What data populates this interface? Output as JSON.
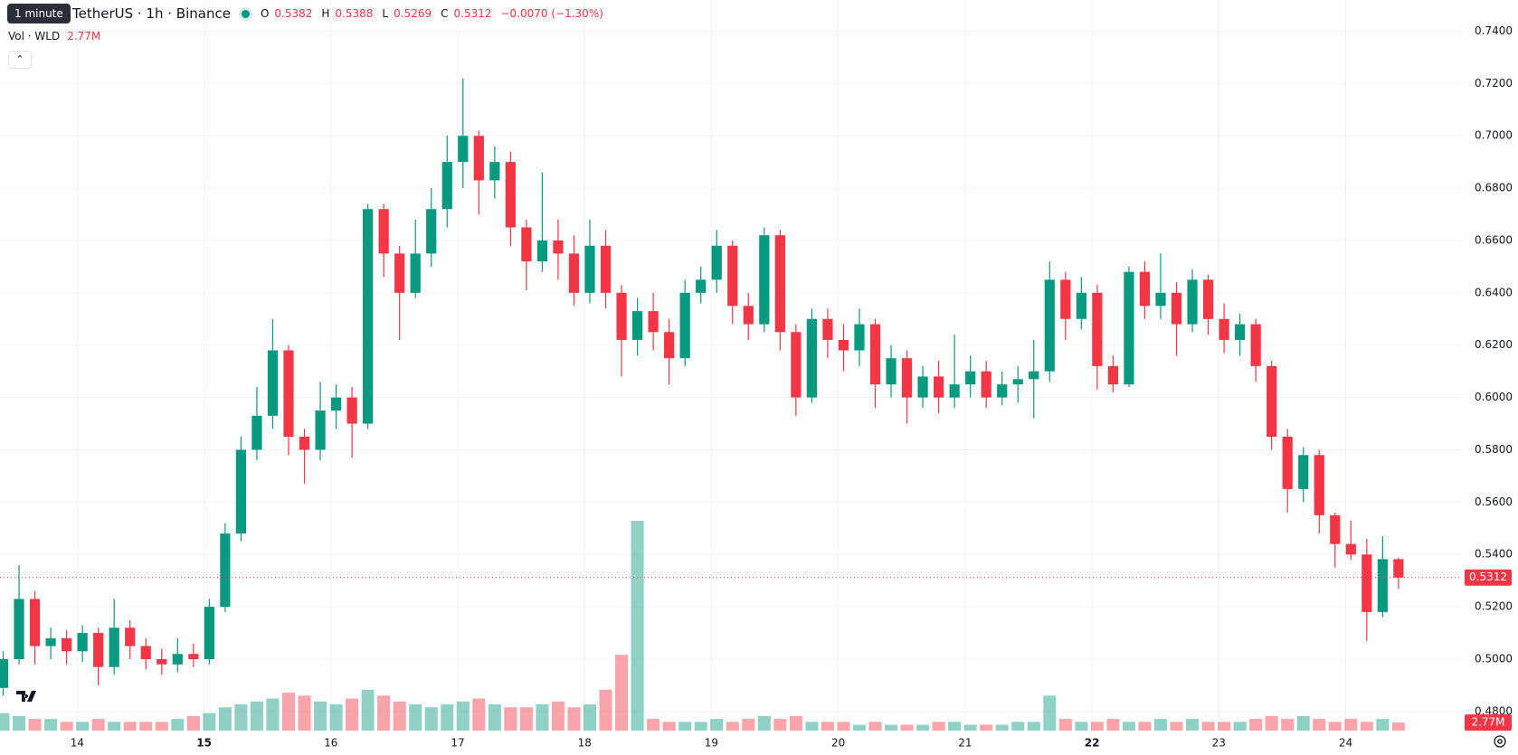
{
  "chart_data": {
    "type": "candlestick",
    "symbol": "TetherUS · 1h · Binance",
    "tooltip": "1 minute",
    "legend_labels": [
      "O",
      "H",
      "L",
      "C"
    ],
    "change": "−0.0070 (−1.30%)",
    "volume_title": "Vol · WLD",
    "volume_value_label": "2.77M",
    "colors": {
      "up": "#089981",
      "down": "#f23645"
    },
    "grid": true,
    "xlim": [
      -0.2,
      92
    ],
    "xticks": [
      {
        "value": 4.67,
        "label": "14"
      },
      {
        "value": 12.67,
        "label": "15"
      },
      {
        "value": 20.67,
        "label": "16"
      },
      {
        "value": 28.67,
        "label": "17"
      },
      {
        "value": 36.67,
        "label": "18"
      },
      {
        "value": 44.67,
        "label": "19"
      },
      {
        "value": 52.67,
        "label": "20"
      },
      {
        "value": 60.67,
        "label": "21"
      },
      {
        "value": 68.67,
        "label": "22"
      },
      {
        "value": 76.67,
        "label": "23"
      },
      {
        "value": 84.67,
        "label": "24"
      }
    ],
    "ylim": [
      0.4727,
      0.7519
    ],
    "yticks": [
      {
        "value": 0.48,
        "label": "0.4800"
      },
      {
        "value": 0.5,
        "label": "0.5000"
      },
      {
        "value": 0.52,
        "label": "0.5200"
      },
      {
        "value": 0.54,
        "label": "0.5400"
      },
      {
        "value": 0.56,
        "label": "0.5600"
      },
      {
        "value": 0.58,
        "label": "0.5800"
      },
      {
        "value": 0.6,
        "label": "0.6000"
      },
      {
        "value": 0.62,
        "label": "0.6200"
      },
      {
        "value": 0.64,
        "label": "0.6400"
      },
      {
        "value": 0.66,
        "label": "0.6600"
      },
      {
        "value": 0.68,
        "label": "0.6800"
      },
      {
        "value": 0.7,
        "label": "0.7000"
      },
      {
        "value": 0.72,
        "label": "0.7200"
      },
      {
        "value": 0.74,
        "label": "0.7400"
      }
    ],
    "open": [
      0.489,
      0.5,
      0.523,
      0.505,
      0.508,
      0.503,
      0.51,
      0.497,
      0.512,
      0.505,
      0.5,
      0.498,
      0.502,
      0.5,
      0.52,
      0.548,
      0.58,
      0.593,
      0.618,
      0.585,
      0.58,
      0.595,
      0.6,
      0.59,
      0.672,
      0.655,
      0.64,
      0.655,
      0.672,
      0.69,
      0.7,
      0.683,
      0.69,
      0.665,
      0.652,
      0.66,
      0.655,
      0.64,
      0.658,
      0.64,
      0.622,
      0.633,
      0.625,
      0.615,
      0.64,
      0.645,
      0.658,
      0.635,
      0.628,
      0.662,
      0.625,
      0.6,
      0.63,
      0.622,
      0.618,
      0.628,
      0.605,
      0.615,
      0.6,
      0.608,
      0.6,
      0.605,
      0.61,
      0.6,
      0.605,
      0.607,
      0.61,
      0.645,
      0.63,
      0.64,
      0.612,
      0.605,
      0.648,
      0.635,
      0.64,
      0.628,
      0.645,
      0.63,
      0.622,
      0.628,
      0.612,
      0.585,
      0.565,
      0.578,
      0.555,
      0.544,
      0.54,
      0.518,
      0.5382
    ],
    "high": [
      0.503,
      0.536,
      0.526,
      0.512,
      0.511,
      0.513,
      0.512,
      0.523,
      0.515,
      0.508,
      0.504,
      0.508,
      0.506,
      0.523,
      0.552,
      0.585,
      0.604,
      0.63,
      0.62,
      0.588,
      0.606,
      0.605,
      0.604,
      0.674,
      0.674,
      0.658,
      0.668,
      0.68,
      0.7,
      0.722,
      0.702,
      0.696,
      0.694,
      0.668,
      0.686,
      0.668,
      0.662,
      0.668,
      0.664,
      0.643,
      0.638,
      0.64,
      0.63,
      0.645,
      0.65,
      0.664,
      0.66,
      0.64,
      0.665,
      0.664,
      0.628,
      0.634,
      0.634,
      0.628,
      0.634,
      0.63,
      0.62,
      0.618,
      0.612,
      0.614,
      0.624,
      0.616,
      0.614,
      0.61,
      0.612,
      0.622,
      0.652,
      0.648,
      0.646,
      0.643,
      0.616,
      0.65,
      0.652,
      0.655,
      0.644,
      0.649,
      0.647,
      0.636,
      0.632,
      0.63,
      0.614,
      0.588,
      0.581,
      0.58,
      0.556,
      0.553,
      0.546,
      0.547,
      0.5388
    ],
    "low": [
      0.486,
      0.498,
      0.498,
      0.5,
      0.498,
      0.499,
      0.49,
      0.494,
      0.5,
      0.496,
      0.494,
      0.495,
      0.497,
      0.498,
      0.518,
      0.545,
      0.576,
      0.588,
      0.578,
      0.567,
      0.576,
      0.588,
      0.577,
      0.588,
      0.646,
      0.622,
      0.638,
      0.65,
      0.665,
      0.68,
      0.67,
      0.676,
      0.658,
      0.641,
      0.648,
      0.645,
      0.635,
      0.636,
      0.634,
      0.608,
      0.616,
      0.618,
      0.605,
      0.612,
      0.636,
      0.64,
      0.628,
      0.622,
      0.625,
      0.618,
      0.593,
      0.598,
      0.615,
      0.61,
      0.612,
      0.596,
      0.6,
      0.59,
      0.596,
      0.594,
      0.596,
      0.6,
      0.596,
      0.597,
      0.598,
      0.592,
      0.606,
      0.622,
      0.626,
      0.603,
      0.602,
      0.604,
      0.63,
      0.63,
      0.616,
      0.625,
      0.624,
      0.617,
      0.616,
      0.606,
      0.58,
      0.556,
      0.56,
      0.548,
      0.535,
      0.538,
      0.507,
      0.516,
      0.5269
    ],
    "close": [
      0.5,
      0.523,
      0.505,
      0.508,
      0.503,
      0.51,
      0.497,
      0.512,
      0.505,
      0.5,
      0.498,
      0.502,
      0.5,
      0.52,
      0.548,
      0.58,
      0.593,
      0.618,
      0.585,
      0.58,
      0.595,
      0.6,
      0.59,
      0.672,
      0.655,
      0.64,
      0.655,
      0.672,
      0.69,
      0.7,
      0.683,
      0.69,
      0.665,
      0.652,
      0.66,
      0.655,
      0.64,
      0.658,
      0.64,
      0.622,
      0.633,
      0.625,
      0.615,
      0.64,
      0.645,
      0.658,
      0.635,
      0.628,
      0.662,
      0.625,
      0.6,
      0.63,
      0.622,
      0.618,
      0.628,
      0.605,
      0.615,
      0.6,
      0.608,
      0.6,
      0.605,
      0.61,
      0.6,
      0.605,
      0.607,
      0.61,
      0.645,
      0.63,
      0.64,
      0.612,
      0.605,
      0.648,
      0.635,
      0.64,
      0.628,
      0.645,
      0.63,
      0.622,
      0.628,
      0.612,
      0.585,
      0.565,
      0.578,
      0.555,
      0.544,
      0.54,
      0.518,
      0.5382,
      0.5312
    ],
    "volume": [
      6,
      5,
      4,
      4,
      3,
      3,
      4,
      3,
      3,
      3,
      3,
      4,
      5,
      6,
      8,
      9,
      10,
      11,
      13,
      12,
      10,
      9,
      11,
      14,
      12,
      10,
      9,
      8,
      9,
      10,
      11,
      9,
      8,
      8,
      9,
      10,
      8,
      9,
      14,
      26,
      72,
      4,
      3,
      3,
      3,
      4,
      3,
      4,
      5,
      4,
      5,
      3,
      3,
      3,
      2,
      3,
      2,
      2,
      2,
      3,
      3,
      2,
      2,
      2,
      3,
      3,
      12,
      4,
      3,
      3,
      4,
      3,
      3,
      4,
      3,
      4,
      3,
      3,
      3,
      4,
      5,
      4,
      5,
      4,
      3,
      4,
      3,
      4,
      2.77
    ]
  }
}
